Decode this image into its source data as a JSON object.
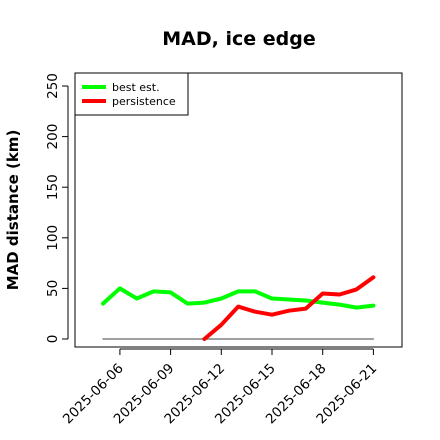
{
  "chart_data": {
    "type": "line",
    "title": "MAD, ice edge",
    "xlabel": "",
    "ylabel": "MAD distance (km)",
    "ylim": [
      0,
      250
    ],
    "yticks": [
      0,
      50,
      100,
      150,
      200,
      250
    ],
    "xlim": [
      "2025-06-04",
      "2025-06-21"
    ],
    "xtick_labels": [
      "2025-06-06",
      "2025-06-09",
      "2025-06-12",
      "2025-06-15",
      "2025-06-18",
      "2025-06-21"
    ],
    "grid": false,
    "legend_position": "top-left",
    "series": [
      {
        "name": "best est.",
        "color": "#00ff00",
        "x": [
          "2025-06-05",
          "2025-06-06",
          "2025-06-07",
          "2025-06-08",
          "2025-06-09",
          "2025-06-10",
          "2025-06-11",
          "2025-06-12",
          "2025-06-13",
          "2025-06-14",
          "2025-06-15",
          "2025-06-16",
          "2025-06-17",
          "2025-06-18",
          "2025-06-19",
          "2025-06-20",
          "2025-06-21"
        ],
        "values": [
          35,
          50,
          40,
          47,
          46,
          35,
          36,
          40,
          47,
          47,
          40,
          39,
          38,
          36,
          34,
          31,
          33
        ]
      },
      {
        "name": "persistence",
        "color": "#ff0000",
        "x": [
          "2025-06-11",
          "2025-06-12",
          "2025-06-13",
          "2025-06-14",
          "2025-06-15",
          "2025-06-16",
          "2025-06-17",
          "2025-06-18",
          "2025-06-19",
          "2025-06-20",
          "2025-06-21"
        ],
        "values": [
          0,
          14,
          32,
          27,
          24,
          28,
          30,
          45,
          44,
          49,
          61
        ]
      },
      {
        "name": "",
        "color": "#808080",
        "x": [
          "2025-06-05",
          "2025-06-21"
        ],
        "values": [
          0,
          0
        ]
      }
    ]
  }
}
